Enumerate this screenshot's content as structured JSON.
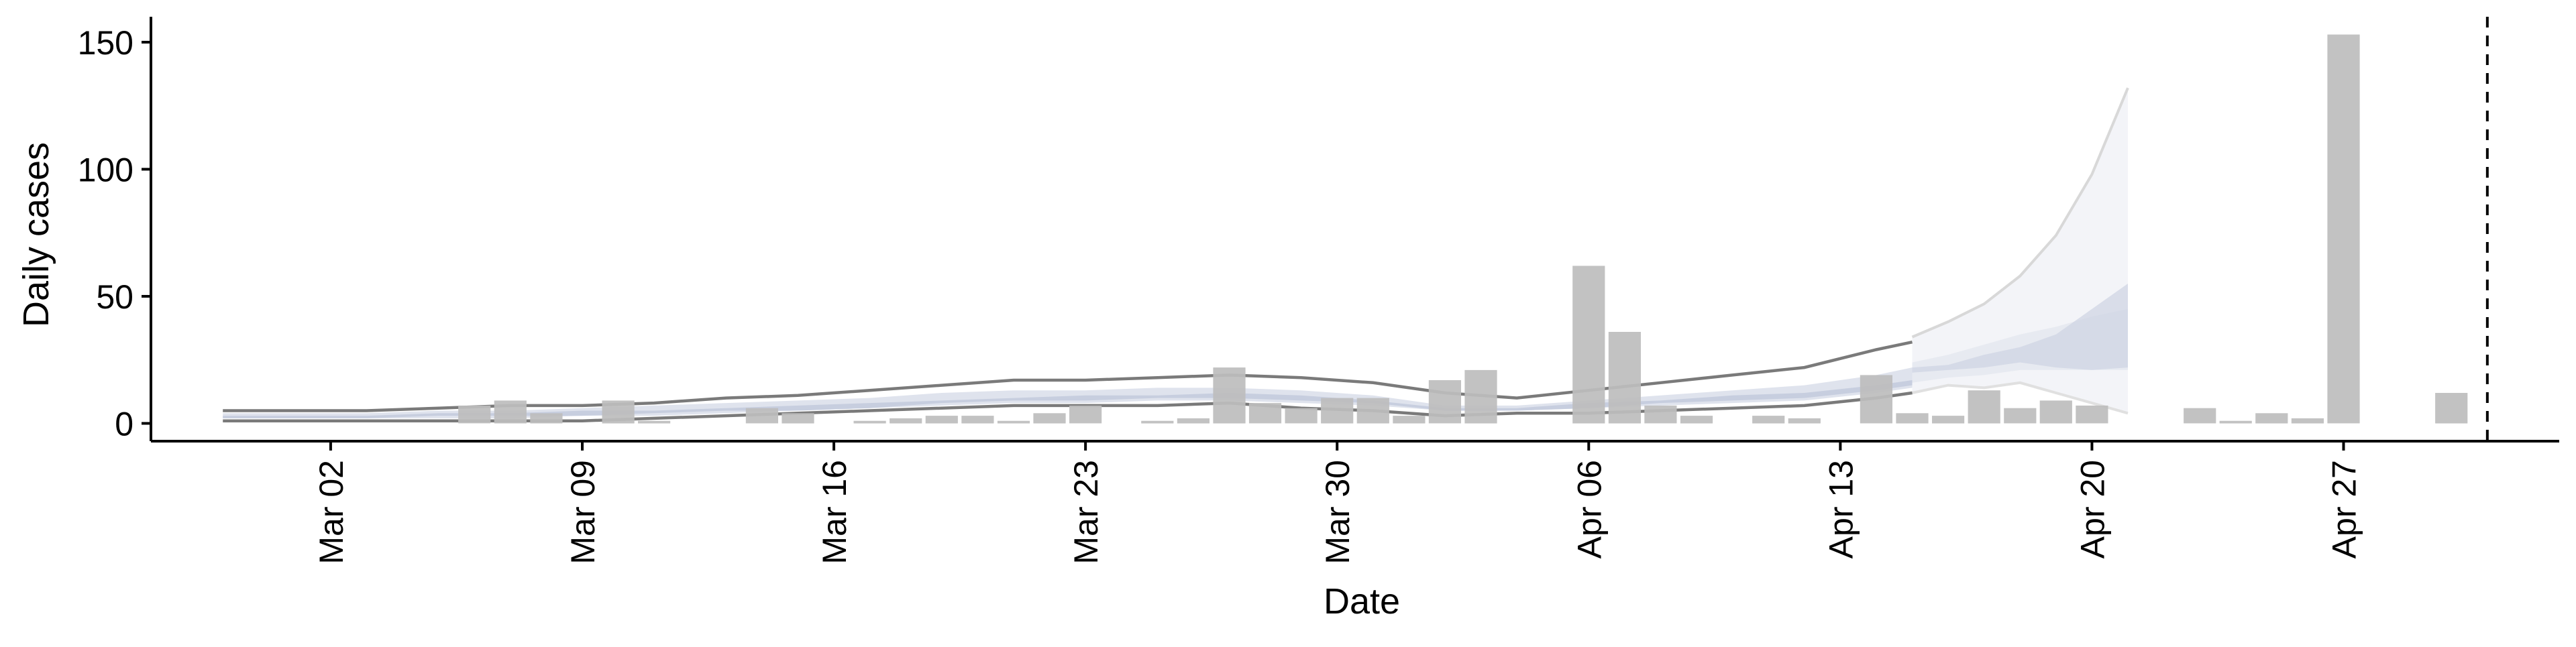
{
  "chart_data": {
    "type": "bar",
    "xlabel": "Date",
    "ylabel": "Daily cases",
    "ylim": [
      -7,
      160
    ],
    "xlim": [
      "2020-02-26",
      "2020-05-03"
    ],
    "grid": false,
    "x_ticks": [
      {
        "date": "2020-03-02",
        "label": "Mar 02"
      },
      {
        "date": "2020-03-09",
        "label": "Mar 09"
      },
      {
        "date": "2020-03-16",
        "label": "Mar 16"
      },
      {
        "date": "2020-03-23",
        "label": "Mar 23"
      },
      {
        "date": "2020-03-30",
        "label": "Mar 30"
      },
      {
        "date": "2020-04-06",
        "label": "Apr 06"
      },
      {
        "date": "2020-04-13",
        "label": "Apr 13"
      },
      {
        "date": "2020-04-20",
        "label": "Apr 20"
      },
      {
        "date": "2020-04-27",
        "label": "Apr 27"
      }
    ],
    "y_ticks": [
      {
        "value": 0,
        "label": "0"
      },
      {
        "value": 50,
        "label": "50"
      },
      {
        "value": 100,
        "label": "100"
      },
      {
        "value": 150,
        "label": "150"
      }
    ],
    "bar_color": "#bdbdbd",
    "bars": {
      "dates": [
        "2020-03-06",
        "2020-03-07",
        "2020-03-08",
        "2020-03-10",
        "2020-03-11",
        "2020-03-14",
        "2020-03-15",
        "2020-03-17",
        "2020-03-18",
        "2020-03-19",
        "2020-03-20",
        "2020-03-21",
        "2020-03-22",
        "2020-03-23",
        "2020-03-25",
        "2020-03-26",
        "2020-03-27",
        "2020-03-28",
        "2020-03-29",
        "2020-03-30",
        "2020-03-31",
        "2020-04-01",
        "2020-04-02",
        "2020-04-03",
        "2020-04-06",
        "2020-04-07",
        "2020-04-08",
        "2020-04-09",
        "2020-04-11",
        "2020-04-12",
        "2020-04-14",
        "2020-04-15",
        "2020-04-16",
        "2020-04-17",
        "2020-04-18",
        "2020-04-19",
        "2020-04-20",
        "2020-04-23",
        "2020-04-24",
        "2020-04-25",
        "2020-04-26",
        "2020-04-27",
        "2020-04-30"
      ],
      "values": [
        7,
        9,
        4,
        9,
        1,
        6,
        4,
        1,
        2,
        3,
        3,
        1,
        4,
        7,
        1,
        2,
        22,
        8,
        6,
        10,
        10,
        3,
        17,
        21,
        62,
        36,
        7,
        3,
        3,
        2,
        19,
        4,
        3,
        13,
        6,
        9,
        7,
        6,
        1,
        4,
        2,
        153,
        12
      ]
    },
    "projection": {
      "dates": [
        "2020-04-15",
        "2020-04-16",
        "2020-04-17",
        "2020-04-18",
        "2020-04-19",
        "2020-04-20",
        "2020-04-21"
      ],
      "outer_upper": [
        34,
        40,
        47,
        58,
        74,
        98,
        132
      ],
      "outer_lower": [
        12,
        15,
        14,
        16,
        12,
        8,
        4
      ],
      "upper_mid": [
        24,
        27,
        31,
        35,
        38,
        42,
        45
      ],
      "lower_mid": [
        16,
        18,
        19,
        21,
        21,
        21,
        21
      ],
      "inner_upper": [
        22,
        23,
        27,
        30,
        35,
        45,
        55
      ],
      "inner_lower": [
        20,
        21,
        22,
        24,
        22,
        21,
        22
      ],
      "color": "#cdd3e2"
    },
    "estimate": {
      "dates": [
        "2020-02-28",
        "2020-03-01",
        "2020-03-03",
        "2020-03-05",
        "2020-03-07",
        "2020-03-09",
        "2020-03-11",
        "2020-03-13",
        "2020-03-15",
        "2020-03-17",
        "2020-03-19",
        "2020-03-21",
        "2020-03-23",
        "2020-03-25",
        "2020-03-27",
        "2020-03-29",
        "2020-03-31",
        "2020-04-02",
        "2020-04-04",
        "2020-04-06",
        "2020-04-08",
        "2020-04-10",
        "2020-04-12",
        "2020-04-14",
        "2020-04-15"
      ],
      "upper": [
        5,
        5,
        5,
        6,
        7,
        7,
        8,
        10,
        11,
        13,
        15,
        17,
        17,
        18,
        19,
        18,
        16,
        12,
        10,
        13,
        16,
        19,
        22,
        29,
        32
      ],
      "lower": [
        1,
        1,
        1,
        1,
        1,
        1,
        2,
        3,
        4,
        5,
        6,
        7,
        7,
        7,
        8,
        6,
        5,
        3,
        4,
        4,
        5,
        6,
        7,
        10,
        12
      ],
      "band_outer": {
        "upper": [
          4,
          4,
          4,
          5,
          5,
          6,
          7,
          8,
          9,
          10,
          12,
          13,
          13,
          14,
          14,
          13,
          11,
          7,
          7,
          9,
          11,
          13,
          15,
          19,
          22
        ],
        "lower": [
          2,
          2,
          2,
          2,
          2,
          3,
          3,
          4,
          5,
          6,
          7,
          8,
          8,
          9,
          9,
          8,
          7,
          5,
          5,
          6,
          7,
          8,
          9,
          12,
          14
        ]
      },
      "band_inner": {
        "upper": [
          3,
          3,
          3,
          4,
          4,
          5,
          5,
          6,
          7,
          8,
          9,
          10,
          11,
          11,
          12,
          11,
          9,
          6,
          6,
          8,
          9,
          11,
          12,
          15,
          17
        ],
        "lower": [
          2,
          2,
          2,
          3,
          3,
          3,
          4,
          5,
          5,
          6,
          8,
          9,
          9,
          10,
          10,
          9,
          8,
          5,
          5,
          6,
          8,
          9,
          10,
          13,
          15
        ]
      },
      "line_color": "#7a7a7a",
      "band_outer_color": "#dfe3ed",
      "band_inner_color": "#c7cedf"
    },
    "vline_date": "2020-05-01"
  }
}
